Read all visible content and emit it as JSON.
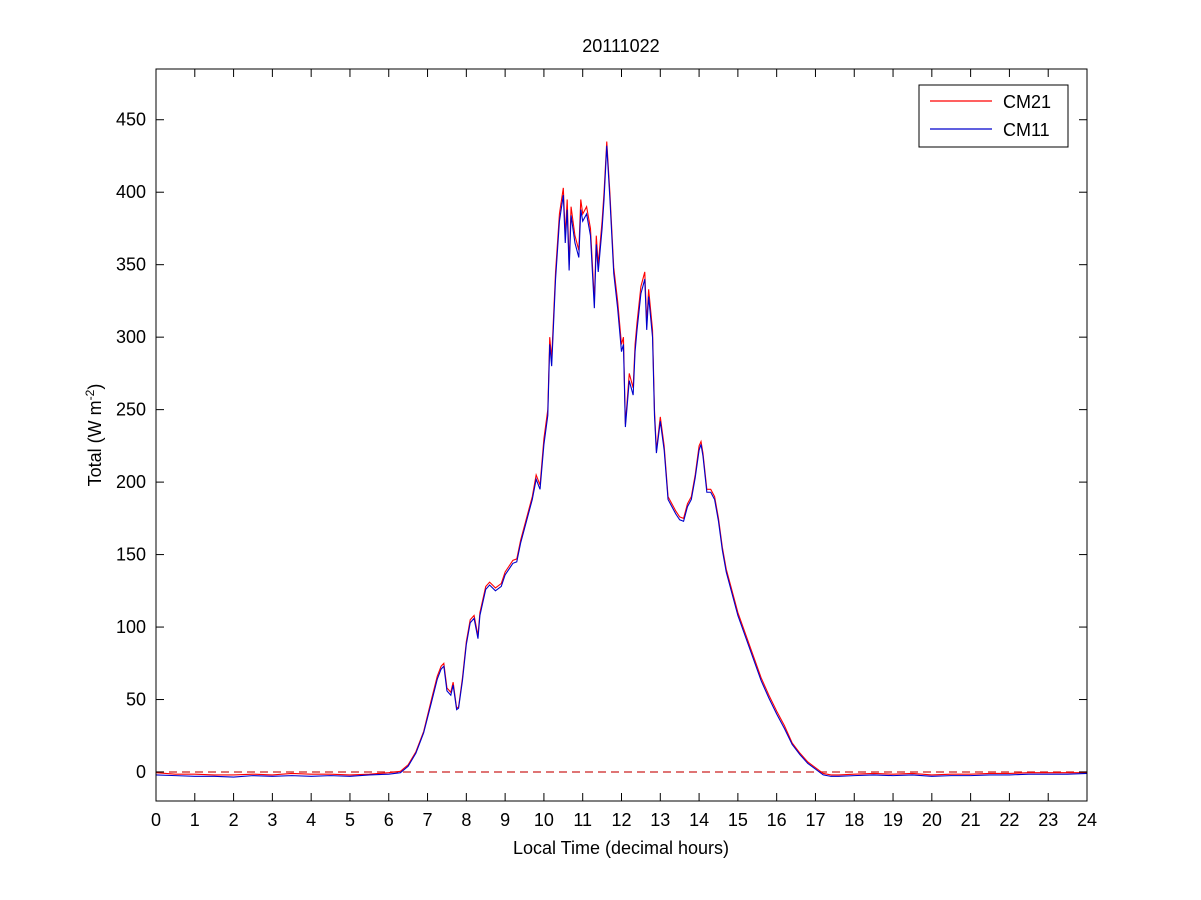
{
  "chart_data": {
    "type": "line",
    "title": "20111022",
    "xlabel": "Local Time (decimal hours)",
    "ylabel": {
      "prefix": "Total (W m",
      "superscript": "-2",
      "suffix": ")"
    },
    "xlim": [
      0,
      24
    ],
    "ylim": [
      -20,
      485
    ],
    "xticks": [
      0,
      1,
      2,
      3,
      4,
      5,
      6,
      7,
      8,
      9,
      10,
      11,
      12,
      13,
      14,
      15,
      16,
      17,
      18,
      19,
      20,
      21,
      22,
      23,
      24
    ],
    "yticks": [
      0,
      50,
      100,
      150,
      200,
      250,
      300,
      350,
      400,
      450
    ],
    "grid": false,
    "legend_position": "top-right",
    "reference_line": {
      "y": 0,
      "style": "dashed",
      "color": "#cc2222"
    },
    "series": [
      {
        "name": "CM21",
        "color": "#ff0000",
        "points": [
          [
            0,
            -0.5
          ],
          [
            0.5,
            -1.5
          ],
          [
            1,
            -1.5
          ],
          [
            1.5,
            -2
          ],
          [
            2,
            -2
          ],
          [
            2.5,
            -1.5
          ],
          [
            3,
            -2
          ],
          [
            3.5,
            -1
          ],
          [
            4,
            -1.5
          ],
          [
            4.5,
            -1.5
          ],
          [
            5,
            -2
          ],
          [
            5.5,
            -1.5
          ],
          [
            6,
            -0.5
          ],
          [
            6.3,
            0.5
          ],
          [
            6.5,
            5
          ],
          [
            6.7,
            14
          ],
          [
            6.9,
            28
          ],
          [
            7.1,
            50
          ],
          [
            7.25,
            66
          ],
          [
            7.35,
            73
          ],
          [
            7.42,
            75
          ],
          [
            7.5,
            58
          ],
          [
            7.6,
            55
          ],
          [
            7.66,
            62
          ],
          [
            7.75,
            44
          ],
          [
            7.8,
            45
          ],
          [
            7.9,
            65
          ],
          [
            8.0,
            90
          ],
          [
            8.1,
            105
          ],
          [
            8.2,
            108
          ],
          [
            8.3,
            94
          ],
          [
            8.35,
            110
          ],
          [
            8.5,
            128
          ],
          [
            8.6,
            131
          ],
          [
            8.75,
            127
          ],
          [
            8.9,
            130
          ],
          [
            9.0,
            138
          ],
          [
            9.2,
            146
          ],
          [
            9.3,
            147
          ],
          [
            9.4,
            160
          ],
          [
            9.5,
            170
          ],
          [
            9.6,
            180
          ],
          [
            9.7,
            190
          ],
          [
            9.8,
            205
          ],
          [
            9.9,
            198
          ],
          [
            10.0,
            230
          ],
          [
            10.1,
            250
          ],
          [
            10.15,
            300
          ],
          [
            10.2,
            285
          ],
          [
            10.3,
            345
          ],
          [
            10.4,
            385
          ],
          [
            10.5,
            403
          ],
          [
            10.55,
            370
          ],
          [
            10.6,
            395
          ],
          [
            10.65,
            350
          ],
          [
            10.7,
            390
          ],
          [
            10.8,
            370
          ],
          [
            10.9,
            360
          ],
          [
            10.95,
            395
          ],
          [
            11.0,
            385
          ],
          [
            11.1,
            390
          ],
          [
            11.2,
            375
          ],
          [
            11.3,
            325
          ],
          [
            11.35,
            370
          ],
          [
            11.4,
            350
          ],
          [
            11.5,
            380
          ],
          [
            11.55,
            400
          ],
          [
            11.62,
            435
          ],
          [
            11.7,
            400
          ],
          [
            11.8,
            348
          ],
          [
            11.9,
            325
          ],
          [
            12.0,
            295
          ],
          [
            12.05,
            300
          ],
          [
            12.1,
            240
          ],
          [
            12.2,
            275
          ],
          [
            12.3,
            265
          ],
          [
            12.35,
            295
          ],
          [
            12.4,
            310
          ],
          [
            12.5,
            335
          ],
          [
            12.6,
            345
          ],
          [
            12.65,
            310
          ],
          [
            12.7,
            333
          ],
          [
            12.8,
            305
          ],
          [
            12.85,
            250
          ],
          [
            12.9,
            222
          ],
          [
            13.0,
            245
          ],
          [
            13.1,
            225
          ],
          [
            13.2,
            190
          ],
          [
            13.3,
            185
          ],
          [
            13.4,
            180
          ],
          [
            13.5,
            176
          ],
          [
            13.6,
            175
          ],
          [
            13.7,
            185
          ],
          [
            13.8,
            190
          ],
          [
            13.9,
            205
          ],
          [
            14.0,
            225
          ],
          [
            14.05,
            228
          ],
          [
            14.1,
            220
          ],
          [
            14.2,
            195
          ],
          [
            14.3,
            195
          ],
          [
            14.4,
            190
          ],
          [
            14.5,
            175
          ],
          [
            14.6,
            155
          ],
          [
            14.7,
            140
          ],
          [
            14.8,
            130
          ],
          [
            14.9,
            120
          ],
          [
            15.0,
            110
          ],
          [
            15.2,
            95
          ],
          [
            15.4,
            80
          ],
          [
            15.6,
            65
          ],
          [
            15.8,
            53
          ],
          [
            16.0,
            42
          ],
          [
            16.2,
            32
          ],
          [
            16.4,
            20
          ],
          [
            16.6,
            13
          ],
          [
            16.8,
            7
          ],
          [
            17.0,
            3
          ],
          [
            17.2,
            -1
          ],
          [
            17.4,
            -2
          ],
          [
            17.6,
            -2
          ],
          [
            18,
            -1.5
          ],
          [
            18.5,
            -1
          ],
          [
            19,
            -1.5
          ],
          [
            19.5,
            -1
          ],
          [
            20,
            -2
          ],
          [
            20.5,
            -1.5
          ],
          [
            21,
            -1.5
          ],
          [
            21.5,
            -1
          ],
          [
            22,
            -1
          ],
          [
            22.5,
            -0.5
          ],
          [
            23,
            -0.5
          ],
          [
            23.5,
            -0.5
          ],
          [
            24,
            -0.5
          ]
        ]
      },
      {
        "name": "CM11",
        "color": "#0000cc",
        "points": [
          [
            0,
            -2
          ],
          [
            0.5,
            -2.5
          ],
          [
            1,
            -3
          ],
          [
            1.5,
            -3
          ],
          [
            2,
            -3.5
          ],
          [
            2.5,
            -2.5
          ],
          [
            3,
            -3
          ],
          [
            3.5,
            -2.5
          ],
          [
            4,
            -3
          ],
          [
            4.5,
            -2.5
          ],
          [
            5,
            -3
          ],
          [
            5.5,
            -2
          ],
          [
            6,
            -1.5
          ],
          [
            6.3,
            -0.5
          ],
          [
            6.5,
            4
          ],
          [
            6.7,
            13
          ],
          [
            6.9,
            27
          ],
          [
            7.1,
            48
          ],
          [
            7.25,
            64
          ],
          [
            7.35,
            71
          ],
          [
            7.42,
            73
          ],
          [
            7.5,
            56
          ],
          [
            7.6,
            53
          ],
          [
            7.66,
            60
          ],
          [
            7.75,
            43
          ],
          [
            7.8,
            44
          ],
          [
            7.9,
            63
          ],
          [
            8.0,
            88
          ],
          [
            8.1,
            103
          ],
          [
            8.2,
            106
          ],
          [
            8.3,
            92
          ],
          [
            8.35,
            108
          ],
          [
            8.5,
            126
          ],
          [
            8.6,
            129
          ],
          [
            8.75,
            125
          ],
          [
            8.9,
            128
          ],
          [
            9.0,
            136
          ],
          [
            9.2,
            144
          ],
          [
            9.3,
            145
          ],
          [
            9.4,
            158
          ],
          [
            9.5,
            168
          ],
          [
            9.6,
            178
          ],
          [
            9.7,
            188
          ],
          [
            9.8,
            202
          ],
          [
            9.9,
            195
          ],
          [
            10.0,
            226
          ],
          [
            10.1,
            246
          ],
          [
            10.15,
            295
          ],
          [
            10.2,
            280
          ],
          [
            10.3,
            340
          ],
          [
            10.4,
            380
          ],
          [
            10.5,
            398
          ],
          [
            10.55,
            365
          ],
          [
            10.6,
            388
          ],
          [
            10.65,
            346
          ],
          [
            10.7,
            384
          ],
          [
            10.8,
            365
          ],
          [
            10.9,
            355
          ],
          [
            10.95,
            388
          ],
          [
            11.0,
            380
          ],
          [
            11.1,
            385
          ],
          [
            11.2,
            370
          ],
          [
            11.3,
            320
          ],
          [
            11.35,
            364
          ],
          [
            11.4,
            345
          ],
          [
            11.5,
            375
          ],
          [
            11.55,
            395
          ],
          [
            11.62,
            432
          ],
          [
            11.7,
            396
          ],
          [
            11.8,
            344
          ],
          [
            11.9,
            320
          ],
          [
            12.0,
            290
          ],
          [
            12.05,
            295
          ],
          [
            12.1,
            238
          ],
          [
            12.2,
            270
          ],
          [
            12.3,
            260
          ],
          [
            12.35,
            290
          ],
          [
            12.4,
            305
          ],
          [
            12.5,
            330
          ],
          [
            12.6,
            340
          ],
          [
            12.65,
            305
          ],
          [
            12.7,
            328
          ],
          [
            12.8,
            300
          ],
          [
            12.85,
            246
          ],
          [
            12.9,
            220
          ],
          [
            13.0,
            242
          ],
          [
            13.1,
            222
          ],
          [
            13.2,
            188
          ],
          [
            13.3,
            183
          ],
          [
            13.4,
            178
          ],
          [
            13.5,
            174
          ],
          [
            13.6,
            173
          ],
          [
            13.7,
            183
          ],
          [
            13.8,
            188
          ],
          [
            13.9,
            203
          ],
          [
            14.0,
            222
          ],
          [
            14.05,
            226
          ],
          [
            14.1,
            218
          ],
          [
            14.2,
            193
          ],
          [
            14.3,
            193
          ],
          [
            14.4,
            188
          ],
          [
            14.5,
            173
          ],
          [
            14.6,
            153
          ],
          [
            14.7,
            138
          ],
          [
            14.8,
            128
          ],
          [
            14.9,
            118
          ],
          [
            15.0,
            108
          ],
          [
            15.2,
            93
          ],
          [
            15.4,
            78
          ],
          [
            15.6,
            63
          ],
          [
            15.8,
            51
          ],
          [
            16.0,
            40
          ],
          [
            16.2,
            30
          ],
          [
            16.4,
            19
          ],
          [
            16.6,
            12
          ],
          [
            16.8,
            6
          ],
          [
            17.0,
            2
          ],
          [
            17.2,
            -2
          ],
          [
            17.4,
            -3
          ],
          [
            17.6,
            -3
          ],
          [
            18,
            -2.5
          ],
          [
            18.5,
            -2
          ],
          [
            19,
            -2.5
          ],
          [
            19.5,
            -2
          ],
          [
            20,
            -3
          ],
          [
            20.5,
            -2.5
          ],
          [
            21,
            -2.5
          ],
          [
            21.5,
            -2
          ],
          [
            22,
            -2
          ],
          [
            22.5,
            -1.5
          ],
          [
            23,
            -1.5
          ],
          [
            23.5,
            -1.5
          ],
          [
            24,
            -1
          ]
        ]
      }
    ]
  }
}
